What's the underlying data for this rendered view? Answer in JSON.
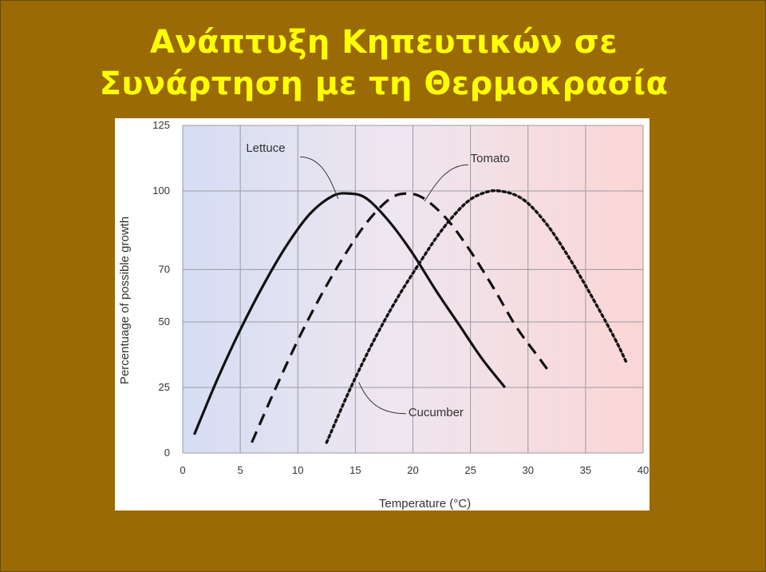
{
  "slide": {
    "title_line1": "Ανάπτυξη Κηπευτικών  σε",
    "title_line2": "Συνάρτηση με τη Θερμοκρασία",
    "background_color": "#9a6a05",
    "title_color": "#ffff00"
  },
  "chart_data": {
    "type": "line",
    "title": "",
    "xlabel": "Temperature (°C)",
    "ylabel": "Percentuage of possible growth",
    "xlim": [
      0,
      40
    ],
    "ylim": [
      0,
      125
    ],
    "x_ticks": [
      "0",
      "5",
      "10",
      "15",
      "20",
      "25",
      "30",
      "35",
      "40"
    ],
    "y_ticks": [
      "0",
      "25",
      "50",
      "70",
      "100",
      "125"
    ],
    "grid": true,
    "legend": "none",
    "series": [
      {
        "name": "Lettuce",
        "style": "solid",
        "x": [
          1,
          3,
          5,
          7,
          9,
          11,
          13,
          14.5,
          16,
          18,
          20,
          22,
          24,
          26,
          28
        ],
        "y": [
          7,
          28,
          47,
          64,
          79,
          91,
          98,
          99,
          97,
          88,
          76,
          62,
          49,
          36,
          25
        ]
      },
      {
        "name": "Tomato",
        "style": "dashed",
        "x": [
          6,
          8,
          10,
          12,
          14,
          16,
          18,
          19.5,
          21,
          23,
          25,
          27,
          29,
          31,
          32
        ],
        "y": [
          4,
          24,
          43,
          60,
          75,
          88,
          97,
          99,
          97,
          89,
          77,
          63,
          48,
          36,
          30
        ]
      },
      {
        "name": "Cucumber",
        "style": "dotted",
        "x": [
          12.5,
          14.5,
          16.5,
          18.5,
          20.5,
          22.5,
          24.5,
          26,
          27.5,
          29.5,
          31.5,
          33.5,
          35.5,
          37.5,
          38.5
        ],
        "y": [
          4,
          24,
          42,
          58,
          72,
          85,
          95,
          99,
          100,
          97,
          88,
          75,
          60,
          44,
          35
        ]
      }
    ],
    "annotations": [
      {
        "text": "Lettuce",
        "series": "Lettuce"
      },
      {
        "text": "Tomato",
        "series": "Tomato"
      },
      {
        "text": "Cucumber",
        "series": "Cucumber"
      }
    ]
  }
}
